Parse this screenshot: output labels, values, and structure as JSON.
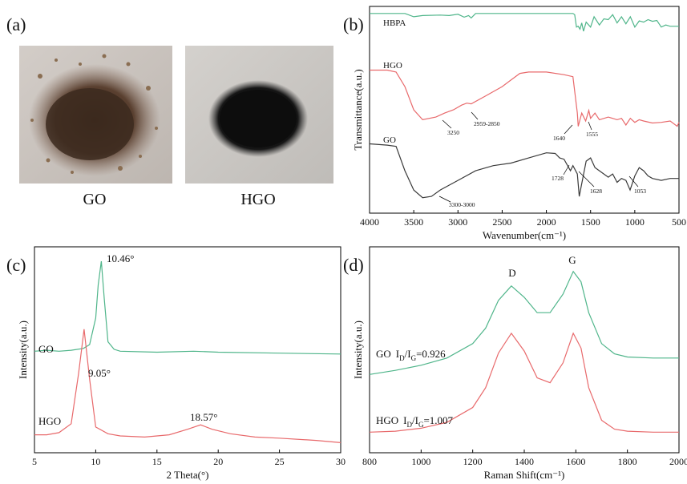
{
  "panels": {
    "a": {
      "letter": "(a)",
      "photos": [
        {
          "caption": "GO",
          "colors": {
            "background": "#c9c2bc",
            "powder": "#4a3425",
            "flake": "#8a6e52"
          }
        },
        {
          "caption": "HGO",
          "colors": {
            "background": "#c9c6c2",
            "powder": "#111111"
          }
        }
      ]
    }
  },
  "chart_data": [
    {
      "panel": "(b)",
      "type": "line",
      "xlabel": "Wavenumber(cm⁻¹)",
      "ylabel": "Transmittance(a.u.)",
      "xlim": [
        4000,
        500
      ],
      "x_reversed": true,
      "y_ticks_shown": false,
      "xticks": [
        4000,
        3500,
        3000,
        2500,
        2000,
        1500,
        1000,
        500
      ],
      "series": [
        {
          "name": "HBPA",
          "color": "#4fb58a",
          "points": [
            [
              4000,
              0.93
            ],
            [
              3800,
              0.93
            ],
            [
              3600,
              0.93
            ],
            [
              3500,
              0.85
            ],
            [
              3400,
              0.88
            ],
            [
              3200,
              0.89
            ],
            [
              3100,
              0.88
            ],
            [
              3000,
              0.91
            ],
            [
              2930,
              0.84
            ],
            [
              2880,
              0.88
            ],
            [
              2850,
              0.82
            ],
            [
              2800,
              0.93
            ],
            [
              2400,
              0.93
            ],
            [
              2000,
              0.93
            ],
            [
              1800,
              0.93
            ],
            [
              1700,
              0.93
            ],
            [
              1680,
              0.9
            ],
            [
              1660,
              0.6
            ],
            [
              1640,
              0.62
            ],
            [
              1620,
              0.55
            ],
            [
              1600,
              0.7
            ],
            [
              1580,
              0.5
            ],
            [
              1550,
              0.72
            ],
            [
              1500,
              0.6
            ],
            [
              1460,
              0.85
            ],
            [
              1400,
              0.65
            ],
            [
              1350,
              0.8
            ],
            [
              1300,
              0.78
            ],
            [
              1250,
              0.9
            ],
            [
              1200,
              0.7
            ],
            [
              1150,
              0.85
            ],
            [
              1100,
              0.68
            ],
            [
              1050,
              0.85
            ],
            [
              1000,
              0.6
            ],
            [
              950,
              0.75
            ],
            [
              900,
              0.72
            ],
            [
              850,
              0.78
            ],
            [
              800,
              0.74
            ],
            [
              750,
              0.76
            ],
            [
              700,
              0.6
            ],
            [
              650,
              0.65
            ],
            [
              600,
              0.62
            ],
            [
              500,
              0.62
            ]
          ]
        },
        {
          "name": "HGO",
          "color": "#e8696b",
          "points": [
            [
              4000,
              0.85
            ],
            [
              3900,
              0.85
            ],
            [
              3800,
              0.85
            ],
            [
              3700,
              0.82
            ],
            [
              3600,
              0.6
            ],
            [
              3500,
              0.25
            ],
            [
              3400,
              0.1
            ],
            [
              3250,
              0.14
            ],
            [
              3150,
              0.2
            ],
            [
              3050,
              0.25
            ],
            [
              2959,
              0.32
            ],
            [
              2900,
              0.35
            ],
            [
              2850,
              0.34
            ],
            [
              2700,
              0.45
            ],
            [
              2500,
              0.6
            ],
            [
              2300,
              0.8
            ],
            [
              2200,
              0.82
            ],
            [
              2000,
              0.82
            ],
            [
              1800,
              0.78
            ],
            [
              1700,
              0.75
            ],
            [
              1650,
              0.2
            ],
            [
              1640,
              0.0
            ],
            [
              1600,
              0.2
            ],
            [
              1555,
              0.08
            ],
            [
              1520,
              0.24
            ],
            [
              1500,
              0.12
            ],
            [
              1450,
              0.2
            ],
            [
              1400,
              0.1
            ],
            [
              1300,
              0.14
            ],
            [
              1200,
              0.1
            ],
            [
              1150,
              0.12
            ],
            [
              1100,
              0.02
            ],
            [
              1050,
              0.12
            ],
            [
              1000,
              0.06
            ],
            [
              950,
              0.1
            ],
            [
              900,
              0.08
            ],
            [
              800,
              0.05
            ],
            [
              700,
              0.06
            ],
            [
              600,
              0.08
            ],
            [
              520,
              0.0
            ],
            [
              500,
              0.06
            ]
          ]
        },
        {
          "name": "GO",
          "color": "#3a3a3a",
          "points": [
            [
              4000,
              0.92
            ],
            [
              3800,
              0.9
            ],
            [
              3700,
              0.88
            ],
            [
              3600,
              0.5
            ],
            [
              3500,
              0.2
            ],
            [
              3400,
              0.08
            ],
            [
              3300,
              0.1
            ],
            [
              3200,
              0.2
            ],
            [
              3000,
              0.35
            ],
            [
              2800,
              0.5
            ],
            [
              2600,
              0.58
            ],
            [
              2400,
              0.62
            ],
            [
              2200,
              0.7
            ],
            [
              2000,
              0.78
            ],
            [
              1900,
              0.77
            ],
            [
              1850,
              0.7
            ],
            [
              1800,
              0.68
            ],
            [
              1728,
              0.5
            ],
            [
              1700,
              0.58
            ],
            [
              1650,
              0.45
            ],
            [
              1628,
              0.1
            ],
            [
              1600,
              0.3
            ],
            [
              1550,
              0.65
            ],
            [
              1500,
              0.7
            ],
            [
              1450,
              0.55
            ],
            [
              1400,
              0.5
            ],
            [
              1300,
              0.4
            ],
            [
              1250,
              0.45
            ],
            [
              1200,
              0.32
            ],
            [
              1150,
              0.38
            ],
            [
              1100,
              0.35
            ],
            [
              1053,
              0.2
            ],
            [
              1000,
              0.42
            ],
            [
              950,
              0.55
            ],
            [
              900,
              0.5
            ],
            [
              850,
              0.42
            ],
            [
              800,
              0.38
            ],
            [
              700,
              0.35
            ],
            [
              600,
              0.38
            ],
            [
              500,
              0.38
            ]
          ]
        }
      ],
      "annotations": [
        "3250",
        "2959-2850",
        "1640",
        "1555",
        "3300-3000",
        "1728",
        "1628",
        "1053"
      ]
    },
    {
      "panel": "(c)",
      "type": "line",
      "xlabel": "2 Theta(°)",
      "ylabel": "Intensity(a.u.)",
      "xlim": [
        5,
        30
      ],
      "y_ticks_shown": false,
      "xticks": [
        5,
        10,
        15,
        20,
        25,
        30
      ],
      "xtick_labels": [
        "5",
        "10",
        "15",
        "20",
        "25",
        "30"
      ],
      "series": [
        {
          "name": "GO",
          "color": "#4fb58a",
          "points": [
            [
              5,
              0.05
            ],
            [
              6,
              0.06
            ],
            [
              7,
              0.05
            ],
            [
              8,
              0.06
            ],
            [
              9,
              0.08
            ],
            [
              9.5,
              0.12
            ],
            [
              10,
              0.4
            ],
            [
              10.2,
              0.75
            ],
            [
              10.46,
              1.0
            ],
            [
              10.7,
              0.6
            ],
            [
              11,
              0.15
            ],
            [
              11.5,
              0.07
            ],
            [
              12,
              0.05
            ],
            [
              15,
              0.04
            ],
            [
              18,
              0.05
            ],
            [
              20,
              0.04
            ],
            [
              25,
              0.03
            ],
            [
              30,
              0.02
            ]
          ]
        },
        {
          "name": "HGO",
          "color": "#e8696b",
          "points": [
            [
              5,
              0.05
            ],
            [
              6,
              0.05
            ],
            [
              7,
              0.07
            ],
            [
              8,
              0.15
            ],
            [
              8.6,
              0.6
            ],
            [
              9.05,
              1.0
            ],
            [
              9.5,
              0.55
            ],
            [
              10,
              0.12
            ],
            [
              11,
              0.06
            ],
            [
              12,
              0.04
            ],
            [
              14,
              0.03
            ],
            [
              16,
              0.05
            ],
            [
              17.5,
              0.1
            ],
            [
              18.57,
              0.14
            ],
            [
              19.5,
              0.1
            ],
            [
              21,
              0.06
            ],
            [
              23,
              0.03
            ],
            [
              25,
              0.02
            ],
            [
              28,
              0.0
            ],
            [
              30,
              -0.02
            ]
          ]
        }
      ],
      "annotations": [
        "10.46°",
        "9.05°",
        "18.57°"
      ]
    },
    {
      "panel": "(d)",
      "type": "line",
      "xlabel": "Raman Shift(cm⁻¹)",
      "ylabel": "Intensity(a.u.)",
      "xlim": [
        800,
        2000
      ],
      "y_ticks_shown": false,
      "xticks": [
        800,
        1000,
        1200,
        1400,
        1600,
        1800,
        2000
      ],
      "series": [
        {
          "name": "GO",
          "color": "#4fb58a",
          "points": [
            [
              800,
              0.0
            ],
            [
              900,
              0.04
            ],
            [
              1000,
              0.09
            ],
            [
              1100,
              0.16
            ],
            [
              1200,
              0.3
            ],
            [
              1250,
              0.45
            ],
            [
              1300,
              0.72
            ],
            [
              1350,
              0.86
            ],
            [
              1400,
              0.75
            ],
            [
              1450,
              0.6
            ],
            [
              1500,
              0.6
            ],
            [
              1550,
              0.78
            ],
            [
              1590,
              1.0
            ],
            [
              1620,
              0.9
            ],
            [
              1650,
              0.6
            ],
            [
              1700,
              0.3
            ],
            [
              1750,
              0.2
            ],
            [
              1800,
              0.17
            ],
            [
              1900,
              0.16
            ],
            [
              2000,
              0.16
            ]
          ]
        },
        {
          "name": "HGO",
          "color": "#e8696b",
          "points": [
            [
              800,
              0.0
            ],
            [
              900,
              0.01
            ],
            [
              1000,
              0.04
            ],
            [
              1100,
              0.1
            ],
            [
              1200,
              0.25
            ],
            [
              1250,
              0.45
            ],
            [
              1300,
              0.8
            ],
            [
              1350,
              1.0
            ],
            [
              1400,
              0.82
            ],
            [
              1450,
              0.55
            ],
            [
              1500,
              0.5
            ],
            [
              1550,
              0.7
            ],
            [
              1590,
              1.0
            ],
            [
              1620,
              0.85
            ],
            [
              1650,
              0.45
            ],
            [
              1700,
              0.12
            ],
            [
              1750,
              0.03
            ],
            [
              1800,
              0.01
            ],
            [
              1900,
              0.0
            ],
            [
              2000,
              0.0
            ]
          ]
        }
      ],
      "annotations": [
        "D",
        "G"
      ],
      "ratios": [
        {
          "sample": "GO",
          "label": "I",
          "sub": "D",
          "slash": "/I",
          "sub2": "G",
          "value": "=0.926"
        },
        {
          "sample": "HGO",
          "label": "I",
          "sub": "D",
          "slash": "/I",
          "sub2": "G",
          "value": "=1.007"
        }
      ]
    }
  ]
}
